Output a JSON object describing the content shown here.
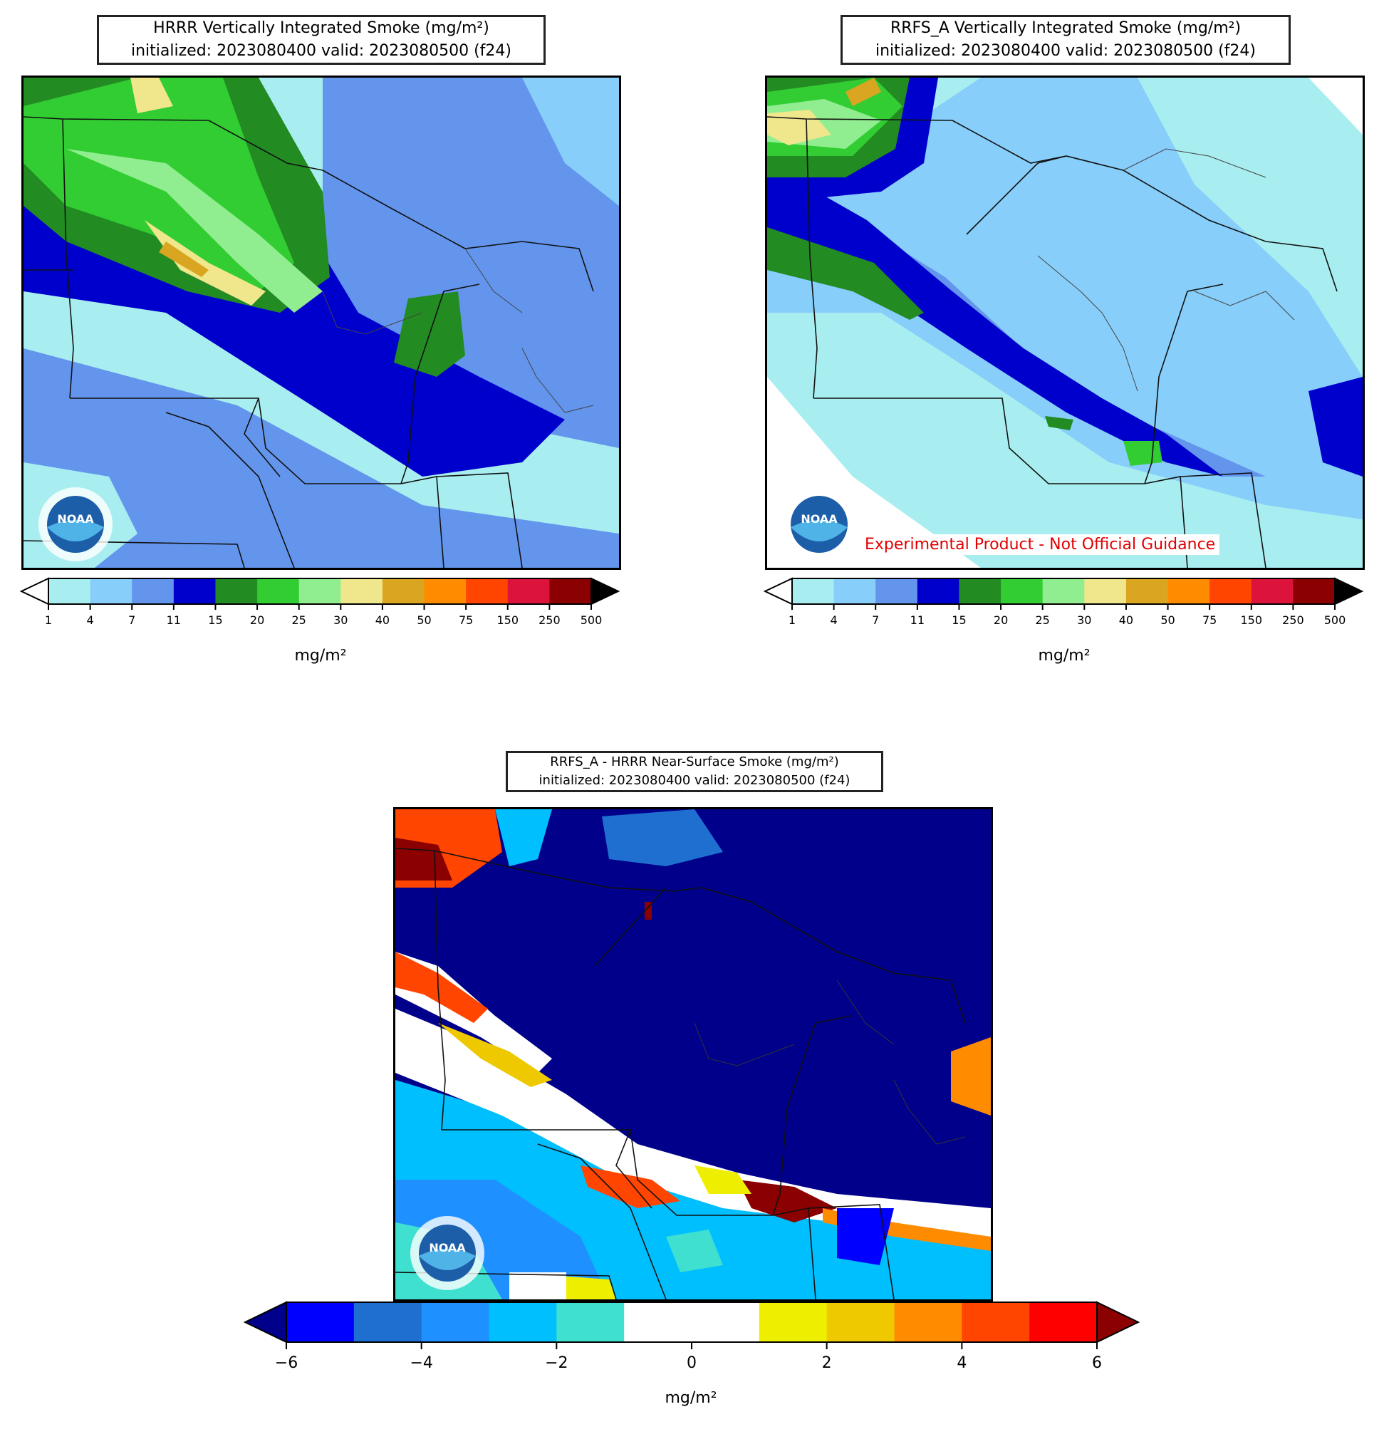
{
  "panels": [
    {
      "title_line1": "HRRR Vertically Integrated Smoke (mg/m²)",
      "title_line2": "initialized: 2023080400 valid: 2023080500 (f24)",
      "colorbar": {
        "ticks": [
          "1",
          "4",
          "7",
          "11",
          "15",
          "20",
          "25",
          "30",
          "40",
          "50",
          "75",
          "150",
          "250",
          "500"
        ],
        "colors": [
          "#a8eef0",
          "#87cefa",
          "#6495ed",
          "#0000cd",
          "#228b22",
          "#32cd32",
          "#90ee90",
          "#f0e68c",
          "#daa520",
          "#ff8c00",
          "#ff4500",
          "#dc143c",
          "#8b0000"
        ],
        "under_color": "#ffffff",
        "over_color": "#000000",
        "label": "mg/m²"
      },
      "logo_text": "NOAA"
    },
    {
      "title_line1": "RRFS_A Vertically Integrated Smoke (mg/m²)",
      "title_line2": "initialized: 2023080400 valid: 2023080500 (f24)",
      "annotation": "Experimental Product - Not Official Guidance",
      "colorbar": {
        "ticks": [
          "1",
          "4",
          "7",
          "11",
          "15",
          "20",
          "25",
          "30",
          "40",
          "50",
          "75",
          "150",
          "250",
          "500"
        ],
        "colors": [
          "#a8eef0",
          "#87cefa",
          "#6495ed",
          "#0000cd",
          "#228b22",
          "#32cd32",
          "#90ee90",
          "#f0e68c",
          "#daa520",
          "#ff8c00",
          "#ff4500",
          "#dc143c",
          "#8b0000"
        ],
        "under_color": "#ffffff",
        "over_color": "#000000",
        "label": "mg/m²"
      },
      "logo_text": "NOAA"
    },
    {
      "title_line1": "RRFS_A - HRRR Near-Surface Smoke (mg/m²)",
      "title_line2": "initialized: 2023080400 valid: 2023080500 (f24)",
      "colorbar": {
        "ticks": [
          "−6",
          "−4",
          "−2",
          "0",
          "2",
          "4",
          "6"
        ],
        "colors": [
          "#0000ff",
          "#1e6fcf",
          "#1e90ff",
          "#00bfff",
          "#40e0d0",
          "#ffffff",
          "#ffffff",
          "#eeee00",
          "#eec900",
          "#ff8c00",
          "#ff4500",
          "#ff0000"
        ],
        "under_color": "#00008b",
        "over_color": "#8b0000",
        "label": "mg/m²"
      },
      "logo_text": "NOAA"
    }
  ]
}
